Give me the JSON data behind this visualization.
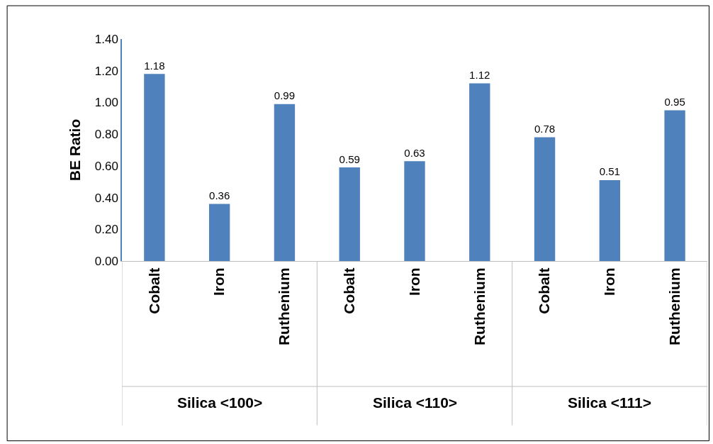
{
  "chart_data": {
    "type": "bar",
    "ylabel": "BE Ratio",
    "categories": [
      "Cobalt",
      "Iron",
      "Ruthenium",
      "Cobalt",
      "Iron",
      "Ruthenium",
      "Cobalt",
      "Iron",
      "Ruthenium"
    ],
    "values": [
      1.18,
      0.36,
      0.99,
      0.59,
      0.63,
      1.12,
      0.78,
      0.51,
      0.95
    ],
    "color": "#4f81bd",
    "data_labels": true,
    "ylim": [
      0,
      1.4
    ],
    "yticks": [
      {
        "value": 0,
        "label": "0.00"
      },
      {
        "value": 0.2,
        "label": "0.20"
      },
      {
        "value": 0.4,
        "label": "0.40"
      },
      {
        "value": 0.6,
        "label": "0.60"
      },
      {
        "value": 0.8,
        "label": "0.80"
      },
      {
        "value": 1.0,
        "label": "1.00"
      },
      {
        "value": 1.2,
        "label": "1.20"
      },
      {
        "value": 1.4,
        "label": "1.40"
      }
    ],
    "legend": false,
    "annotations": [
      "Silica <100>",
      "Silica <110>",
      "Silica <111>"
    ]
  }
}
